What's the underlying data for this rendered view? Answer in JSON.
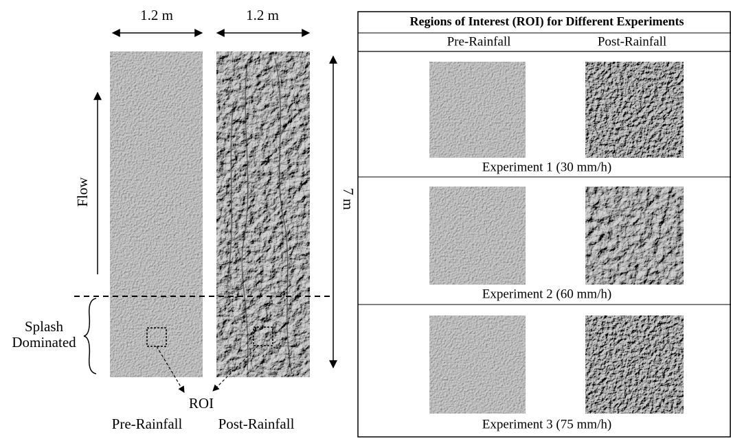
{
  "left_panel": {
    "width_labels": [
      "1.2 m",
      "1.2 m"
    ],
    "flow_label": "Flow",
    "length_label": "7 m",
    "zone_label": [
      "Splash",
      "Dominated"
    ],
    "roi_label": "ROI",
    "plot_labels": [
      "Pre-Rainfall",
      "Post-Rainfall"
    ]
  },
  "table": {
    "title": "Regions of Interest (ROI) for Different Experiments",
    "headers": [
      "Pre-Rainfall",
      "Post-Rainfall"
    ],
    "rows": [
      {
        "caption": "Experiment 1 (30 mm/h)"
      },
      {
        "caption": "Experiment 2 (60 mm/h)"
      },
      {
        "caption": "Experiment 3 (75 mm/h)"
      }
    ]
  }
}
